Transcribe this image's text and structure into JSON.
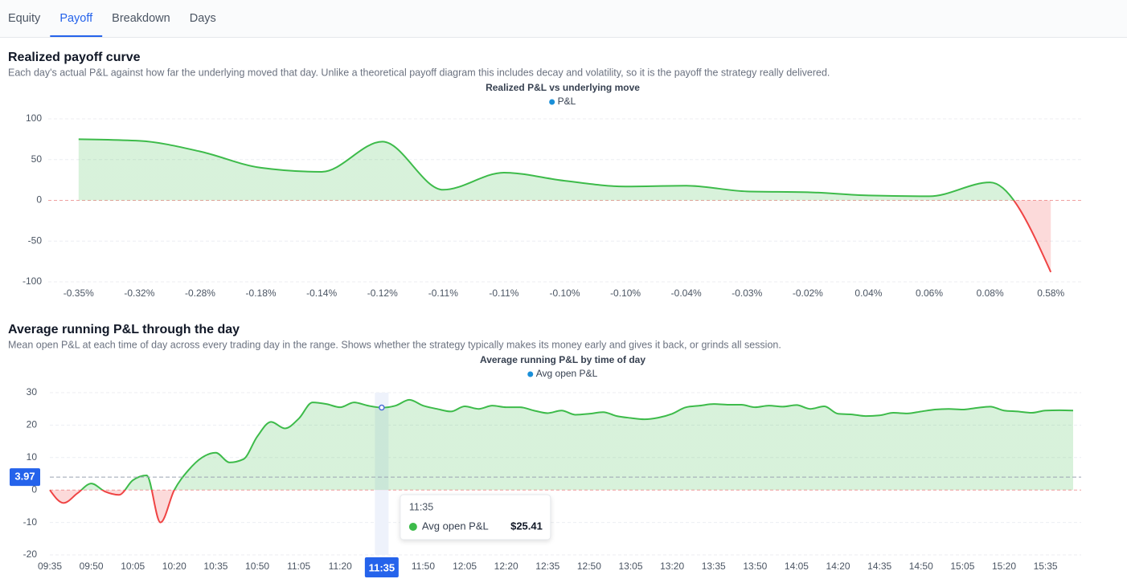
{
  "tabs": {
    "items": [
      "Equity",
      "Payoff",
      "Breakdown",
      "Days"
    ],
    "active": "Payoff"
  },
  "chart_data": [
    {
      "type": "area",
      "section_title": "Realized payoff curve",
      "description": "Each day's actual P&L against how far the underlying moved that day. Unlike a theoretical payoff diagram this includes decay and volatility, so it is the payoff the strategy really delivered.",
      "title": "Realized P&L vs underlying move",
      "categories": [
        "-0.35%",
        "-0.32%",
        "-0.28%",
        "-0.18%",
        "-0.14%",
        "-0.12%",
        "-0.11%",
        "-0.11%",
        "-0.10%",
        "-0.10%",
        "-0.04%",
        "-0.03%",
        "-0.02%",
        "0.04%",
        "0.06%",
        "0.08%",
        "0.58%"
      ],
      "series": [
        {
          "name": "P&L",
          "color": "#1a8fd8",
          "values": [
            75,
            73,
            60,
            40,
            35,
            72,
            13,
            34,
            24,
            17,
            18,
            11,
            10,
            6,
            5,
            22,
            -88
          ]
        }
      ],
      "positive_color": "#3dbb4a",
      "negative_color": "#ef4444",
      "ylim": [
        -100,
        100
      ],
      "yticks": [
        -100,
        -50,
        0,
        50,
        100
      ],
      "grid": true,
      "legend": "top"
    },
    {
      "type": "area",
      "section_title": "Average running P&L through the day",
      "description": "Mean open P&L at each time of day across every trading day in the range. Shows whether the strategy typically makes its money early and gives it back, or grinds all session.",
      "title": "Average running P&L by time of day",
      "categories": [
        "09:35",
        null,
        null,
        "09:50",
        null,
        null,
        "10:05",
        null,
        null,
        "10:20",
        null,
        null,
        "10:35",
        null,
        null,
        "10:50",
        null,
        null,
        "11:05",
        null,
        null,
        "11:20",
        null,
        null,
        "11:35",
        null,
        null,
        "11:50",
        null,
        null,
        "12:05",
        null,
        null,
        "12:20",
        null,
        null,
        "12:35",
        null,
        null,
        "12:50",
        null,
        null,
        "13:05",
        null,
        null,
        "13:20",
        null,
        null,
        "13:35",
        null,
        null,
        "13:50",
        null,
        null,
        "14:05",
        null,
        null,
        "14:20",
        null,
        null,
        "14:35",
        null,
        null,
        "14:50",
        null,
        null,
        "15:05",
        null,
        null,
        "15:20",
        null,
        null,
        "15:35",
        null,
        null
      ],
      "series": [
        {
          "name": "Avg open P&L",
          "color": "#1a8fd8",
          "values": [
            0,
            -4,
            -1,
            2,
            -0.5,
            -1.5,
            3,
            4.5,
            -10,
            0,
            6,
            10,
            11.5,
            8.5,
            9.5,
            16.5,
            21,
            19,
            22,
            27,
            26.5,
            25.5,
            27,
            26,
            25.41,
            26,
            27.8,
            26,
            25,
            24.2,
            25.8,
            25,
            26,
            25.5,
            25.5,
            24.5,
            23.7,
            24.5,
            23.2,
            23.5,
            24,
            22.8,
            22.2,
            21.8,
            22.3,
            23.5,
            25.5,
            26,
            26.5,
            26.3,
            26.3,
            25.5,
            26,
            25.7,
            26.2,
            25,
            25.8,
            23.5,
            23.3,
            22.8,
            23,
            23.8,
            23.6,
            24.2,
            24.8,
            25,
            24.8,
            25.3,
            25.7,
            24.5,
            24.2,
            23.8,
            24.5,
            24.6,
            24.5
          ]
        }
      ],
      "positive_color": "#3dbb4a",
      "negative_color": "#ef4444",
      "ylim": [
        -20,
        30
      ],
      "yticks": [
        -20,
        -10,
        0,
        10,
        20,
        30
      ],
      "grid": true,
      "legend": "top",
      "reference_line": 3.97,
      "tooltip": {
        "x": "11:35",
        "value_label": "$25.41"
      }
    }
  ]
}
